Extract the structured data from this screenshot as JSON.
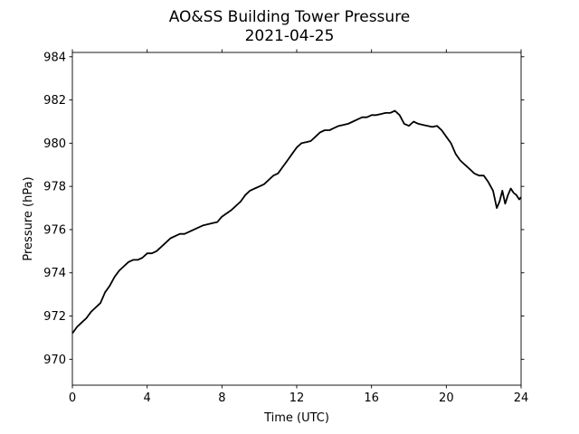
{
  "chart_data": {
    "type": "line",
    "title": "AO&SS Building Tower Pressure",
    "subtitle": "2021-04-25",
    "xlabel": "Time (UTC)",
    "ylabel": "Pressure (hPa)",
    "xlim": [
      0,
      24
    ],
    "ylim": [
      968.8,
      984.2
    ],
    "xticks": [
      0,
      4,
      8,
      12,
      16,
      20,
      24
    ],
    "yticks": [
      970,
      972,
      974,
      976,
      978,
      980,
      982,
      984
    ],
    "grid": false,
    "line_color": "#000000",
    "series": [
      {
        "x": [
          0,
          0.25,
          0.5,
          0.75,
          1.0,
          1.25,
          1.5,
          1.75,
          2.0,
          2.25,
          2.5,
          2.75,
          3.0,
          3.25,
          3.5,
          3.75,
          4.0,
          4.25,
          4.5,
          4.75,
          5.0,
          5.25,
          5.5,
          5.75,
          6.0,
          6.25,
          6.5,
          6.75,
          7.0,
          7.25,
          7.5,
          7.75,
          8.0,
          8.25,
          8.5,
          8.75,
          9.0,
          9.25,
          9.5,
          9.75,
          10.0,
          10.25,
          10.5,
          10.75,
          11.0,
          11.25,
          11.5,
          11.75,
          12.0,
          12.25,
          12.5,
          12.75,
          13.0,
          13.25,
          13.5,
          13.75,
          14.0,
          14.25,
          14.5,
          14.75,
          15.0,
          15.25,
          15.5,
          15.75,
          16.0,
          16.25,
          16.5,
          16.75,
          17.0,
          17.25,
          17.5,
          17.75,
          18.0,
          18.25,
          18.5,
          18.75,
          19.0,
          19.25,
          19.5,
          19.75,
          20.0,
          20.25,
          20.5,
          20.75,
          21.0,
          21.25,
          21.5,
          21.75,
          22.0,
          22.25,
          22.5,
          22.7,
          22.85,
          23.0,
          23.15,
          23.3,
          23.45,
          23.6,
          23.75,
          23.9,
          24.0
        ],
        "y": [
          971.2,
          971.5,
          971.7,
          971.9,
          972.2,
          972.4,
          972.6,
          973.1,
          973.4,
          973.8,
          974.1,
          974.3,
          974.5,
          974.6,
          974.6,
          974.7,
          974.9,
          974.9,
          975.0,
          975.2,
          975.4,
          975.6,
          975.7,
          975.8,
          975.8,
          975.9,
          976.0,
          976.1,
          976.2,
          976.25,
          976.3,
          976.35,
          976.6,
          976.75,
          976.9,
          977.1,
          977.3,
          977.6,
          977.8,
          977.9,
          978.0,
          978.1,
          978.3,
          978.5,
          978.6,
          978.9,
          979.2,
          979.5,
          979.8,
          980.0,
          980.05,
          980.1,
          980.3,
          980.5,
          980.6,
          980.6,
          980.7,
          980.8,
          980.85,
          980.9,
          981.0,
          981.1,
          981.2,
          981.2,
          981.3,
          981.3,
          981.35,
          981.4,
          981.4,
          981.5,
          981.3,
          980.9,
          980.8,
          981.0,
          980.9,
          980.85,
          980.8,
          980.75,
          980.8,
          980.6,
          980.3,
          980.0,
          979.5,
          979.2,
          979.0,
          978.8,
          978.6,
          978.5,
          978.5,
          978.2,
          977.8,
          977.0,
          977.3,
          977.8,
          977.2,
          977.6,
          977.9,
          977.7,
          977.6,
          977.4,
          977.5
        ]
      }
    ]
  }
}
